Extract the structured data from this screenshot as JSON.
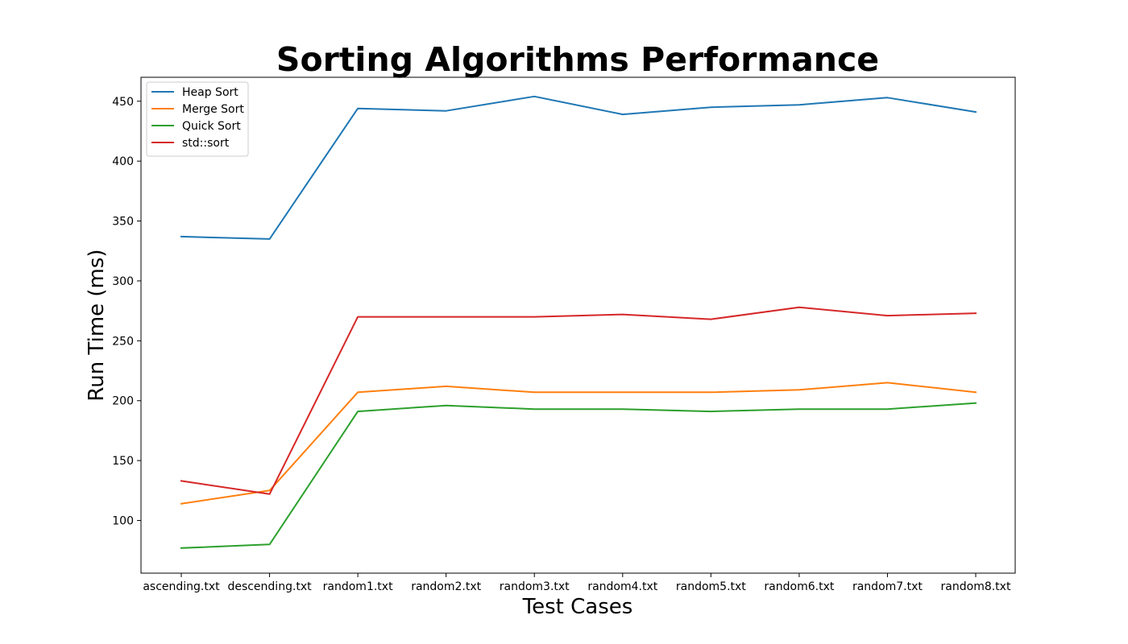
{
  "chart_data": {
    "type": "line",
    "title": "Sorting Algorithms Performance",
    "xlabel": "Test Cases",
    "ylabel": "Run Time (ms)",
    "categories": [
      "ascending.txt",
      "descending.txt",
      "random1.txt",
      "random2.txt",
      "random3.txt",
      "random4.txt",
      "random5.txt",
      "random6.txt",
      "random7.txt",
      "random8.txt"
    ],
    "yticks": [
      100,
      150,
      200,
      250,
      300,
      350,
      400,
      450
    ],
    "ylim": [
      56,
      470
    ],
    "grid": false,
    "legend_position": "upper-left",
    "series": [
      {
        "name": "Heap Sort",
        "color": "#1f77b4",
        "values": [
          337,
          335,
          444,
          442,
          454,
          439,
          445,
          447,
          453,
          441
        ]
      },
      {
        "name": "Merge Sort",
        "color": "#ff7f0e",
        "values": [
          114,
          125,
          207,
          212,
          207,
          207,
          207,
          209,
          215,
          207
        ]
      },
      {
        "name": "Quick Sort",
        "color": "#2ca02c",
        "values": [
          77,
          80,
          191,
          196,
          193,
          193,
          191,
          193,
          193,
          198
        ]
      },
      {
        "name": "std::sort",
        "color": "#d62728",
        "values": [
          133,
          122,
          270,
          270,
          270,
          272,
          268,
          278,
          271,
          273
        ]
      }
    ]
  }
}
